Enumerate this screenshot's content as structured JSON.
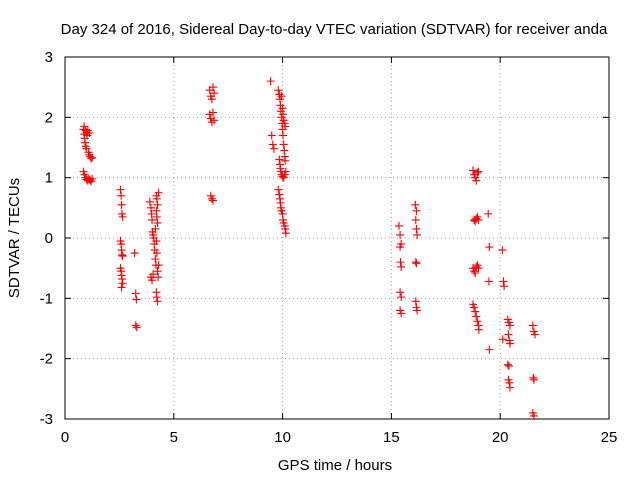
{
  "chart_data": {
    "type": "scatter",
    "title": "Day 324 of 2016, Sidereal Day-to-day VTEC variation (SDTVAR) for receiver anda",
    "xlabel": "GPS time / hours",
    "ylabel": "SDTVAR / TECUs",
    "xlim": [
      0,
      25
    ],
    "ylim": [
      -3,
      3
    ],
    "xticks": [
      "0",
      "5",
      "10",
      "15",
      "20",
      "25"
    ],
    "yticks": [
      "-3",
      "-2",
      "-1",
      "0",
      "1",
      "2",
      "3"
    ],
    "grid": true,
    "marker": "plus",
    "color": "#ff0000",
    "series": [
      {
        "name": "SDTVAR",
        "points": [
          [
            0.85,
            1.8
          ],
          [
            0.88,
            1.72
          ],
          [
            0.9,
            1.65
          ],
          [
            0.92,
            1.58
          ],
          [
            0.95,
            1.52
          ],
          [
            0.98,
            1.48
          ],
          [
            1.0,
            1.75
          ],
          [
            1.02,
            1.7
          ],
          [
            1.05,
            1.78
          ],
          [
            1.08,
            1.42
          ],
          [
            1.1,
            1.38
          ],
          [
            1.12,
            1.74
          ],
          [
            1.15,
            1.35
          ],
          [
            1.2,
            1.32
          ],
          [
            1.25,
            1.33
          ],
          [
            0.95,
            1.78
          ],
          [
            0.88,
            1.85
          ],
          [
            0.85,
            1.1
          ],
          [
            0.9,
            1.05
          ],
          [
            0.95,
            1.0
          ],
          [
            1.0,
            0.97
          ],
          [
            1.05,
            0.95
          ],
          [
            1.1,
            0.98
          ],
          [
            1.15,
            0.96
          ],
          [
            1.2,
            0.94
          ],
          [
            1.25,
            0.98
          ],
          [
            2.55,
            0.8
          ],
          [
            2.58,
            0.7
          ],
          [
            2.6,
            0.55
          ],
          [
            2.62,
            0.4
          ],
          [
            2.65,
            0.35
          ],
          [
            2.55,
            -0.05
          ],
          [
            2.58,
            -0.1
          ],
          [
            2.6,
            -0.2
          ],
          [
            2.62,
            -0.28
          ],
          [
            2.65,
            -0.3
          ],
          [
            2.55,
            -0.5
          ],
          [
            2.58,
            -0.55
          ],
          [
            2.6,
            -0.62
          ],
          [
            2.62,
            -0.68
          ],
          [
            2.65,
            -0.75
          ],
          [
            2.6,
            -0.82
          ],
          [
            3.2,
            -0.25
          ],
          [
            3.25,
            -0.92
          ],
          [
            3.28,
            -1.02
          ],
          [
            3.25,
            -1.45
          ],
          [
            3.3,
            -1.48
          ],
          [
            3.9,
            0.6
          ],
          [
            3.95,
            0.5
          ],
          [
            3.98,
            0.4
          ],
          [
            4.0,
            0.3
          ],
          [
            4.02,
            0.1
          ],
          [
            4.05,
            0.05
          ],
          [
            4.08,
            0.0
          ],
          [
            4.1,
            -0.1
          ],
          [
            4.12,
            -0.2
          ],
          [
            4.15,
            -0.35
          ],
          [
            4.18,
            -0.45
          ],
          [
            4.2,
            0.7
          ],
          [
            4.22,
            0.65
          ],
          [
            4.25,
            0.55
          ],
          [
            4.2,
            0.45
          ],
          [
            4.22,
            0.35
          ],
          [
            4.25,
            0.25
          ],
          [
            4.15,
            0.15
          ],
          [
            4.2,
            -0.05
          ],
          [
            4.22,
            -0.25
          ],
          [
            4.25,
            -0.55
          ],
          [
            4.28,
            -0.65
          ],
          [
            3.95,
            -0.65
          ],
          [
            4.0,
            -0.7
          ],
          [
            4.05,
            -0.6
          ],
          [
            4.2,
            -0.9
          ],
          [
            4.22,
            -0.98
          ],
          [
            4.25,
            -1.05
          ],
          [
            4.3,
            0.75
          ],
          [
            4.3,
            -0.45
          ],
          [
            6.65,
            2.45
          ],
          [
            6.7,
            2.35
          ],
          [
            6.75,
            2.3
          ],
          [
            6.8,
            2.5
          ],
          [
            6.85,
            2.4
          ],
          [
            6.65,
            2.05
          ],
          [
            6.7,
            1.98
          ],
          [
            6.75,
            1.92
          ],
          [
            6.8,
            2.08
          ],
          [
            6.85,
            1.95
          ],
          [
            6.7,
            0.7
          ],
          [
            6.75,
            0.65
          ],
          [
            6.8,
            0.62
          ],
          [
            9.45,
            2.6
          ],
          [
            9.5,
            1.7
          ],
          [
            9.55,
            1.55
          ],
          [
            9.6,
            1.48
          ],
          [
            9.8,
            2.45
          ],
          [
            9.85,
            2.38
          ],
          [
            9.88,
            2.3
          ],
          [
            9.9,
            2.2
          ],
          [
            9.92,
            2.1
          ],
          [
            9.95,
            2.0
          ],
          [
            9.98,
            1.9
          ],
          [
            10.0,
            1.8
          ],
          [
            10.02,
            1.7
          ],
          [
            10.05,
            1.55
          ],
          [
            10.08,
            1.45
          ],
          [
            10.1,
            1.35
          ],
          [
            10.12,
            1.28
          ],
          [
            9.85,
            1.3
          ],
          [
            9.88,
            1.22
          ],
          [
            9.9,
            1.15
          ],
          [
            9.92,
            1.1
          ],
          [
            9.95,
            1.05
          ],
          [
            10.0,
            1.02
          ],
          [
            10.05,
            1.0
          ],
          [
            10.1,
            1.05
          ],
          [
            10.15,
            1.1
          ],
          [
            10.02,
            2.05
          ],
          [
            10.05,
            1.95
          ],
          [
            10.1,
            1.9
          ],
          [
            10.12,
            1.85
          ],
          [
            9.95,
            2.35
          ],
          [
            10.0,
            2.15
          ],
          [
            9.8,
            0.8
          ],
          [
            9.85,
            0.72
          ],
          [
            9.88,
            0.65
          ],
          [
            9.9,
            0.58
          ],
          [
            9.92,
            0.5
          ],
          [
            9.95,
            0.45
          ],
          [
            10.0,
            0.4
          ],
          [
            10.02,
            0.3
          ],
          [
            10.05,
            0.25
          ],
          [
            10.1,
            0.2
          ],
          [
            10.12,
            0.15
          ],
          [
            10.15,
            0.08
          ],
          [
            15.35,
            0.2
          ],
          [
            15.4,
            0.05
          ],
          [
            15.45,
            -0.1
          ],
          [
            15.4,
            -0.15
          ],
          [
            15.42,
            -0.4
          ],
          [
            15.45,
            -0.48
          ],
          [
            15.4,
            -0.9
          ],
          [
            15.45,
            -0.98
          ],
          [
            15.4,
            -1.2
          ],
          [
            15.45,
            -1.25
          ],
          [
            16.1,
            0.55
          ],
          [
            16.15,
            0.45
          ],
          [
            16.12,
            0.3
          ],
          [
            16.15,
            0.15
          ],
          [
            16.18,
            0.05
          ],
          [
            16.12,
            -0.4
          ],
          [
            16.15,
            -0.42
          ],
          [
            16.12,
            -1.05
          ],
          [
            16.15,
            -1.15
          ],
          [
            16.18,
            -1.2
          ],
          [
            18.75,
            1.12
          ],
          [
            18.8,
            1.05
          ],
          [
            18.85,
            1.0
          ],
          [
            18.9,
            0.95
          ],
          [
            18.95,
            1.08
          ],
          [
            19.0,
            1.1
          ],
          [
            18.8,
            0.3
          ],
          [
            18.85,
            0.28
          ],
          [
            18.9,
            0.32
          ],
          [
            18.95,
            0.35
          ],
          [
            19.0,
            0.3
          ],
          [
            18.75,
            -0.5
          ],
          [
            18.8,
            -0.55
          ],
          [
            18.85,
            -0.58
          ],
          [
            18.9,
            -0.48
          ],
          [
            18.95,
            -0.45
          ],
          [
            19.0,
            -0.5
          ],
          [
            18.75,
            -1.1
          ],
          [
            18.8,
            -1.15
          ],
          [
            18.85,
            -1.22
          ],
          [
            18.9,
            -1.3
          ],
          [
            18.95,
            -1.38
          ],
          [
            19.0,
            -1.45
          ],
          [
            19.02,
            -1.52
          ],
          [
            19.45,
            0.4
          ],
          [
            19.5,
            -0.15
          ],
          [
            19.48,
            -0.72
          ],
          [
            19.5,
            -1.85
          ],
          [
            20.1,
            -0.2
          ],
          [
            20.15,
            -0.72
          ],
          [
            20.18,
            -0.8
          ],
          [
            20.12,
            -1.68
          ],
          [
            20.35,
            -1.35
          ],
          [
            20.4,
            -1.4
          ],
          [
            20.45,
            -1.45
          ],
          [
            20.38,
            -1.6
          ],
          [
            20.42,
            -1.7
          ],
          [
            20.45,
            -1.75
          ],
          [
            20.35,
            -2.1
          ],
          [
            20.4,
            -2.12
          ],
          [
            20.38,
            -2.35
          ],
          [
            20.42,
            -2.4
          ],
          [
            20.45,
            -2.48
          ],
          [
            21.5,
            -1.45
          ],
          [
            21.55,
            -1.55
          ],
          [
            21.6,
            -1.6
          ],
          [
            21.52,
            -2.32
          ],
          [
            21.55,
            -2.35
          ],
          [
            21.5,
            -2.9
          ],
          [
            21.55,
            -2.95
          ]
        ]
      }
    ]
  }
}
